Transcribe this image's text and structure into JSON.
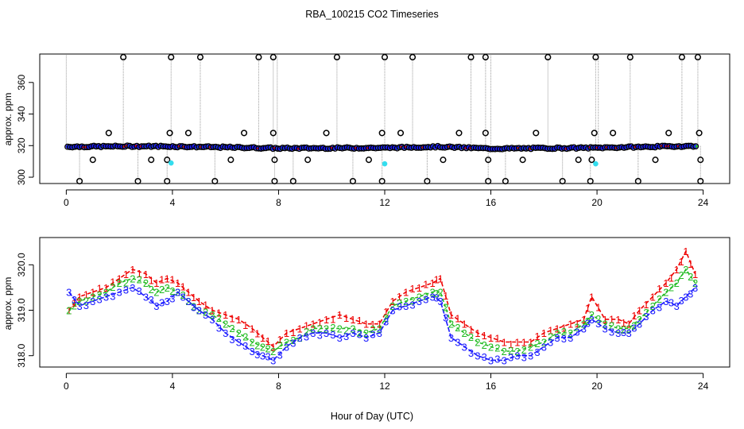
{
  "title": "RBA_100215  CO2 Timeseries",
  "xlabel": "Hour of Day (UTC)",
  "colors": {
    "black": "#000000",
    "blue": "#1a1aff",
    "green": "#22bb22",
    "red": "#ee0000",
    "cyan": "#33ddee",
    "gray": "#9a9a9a"
  },
  "chart_data": [
    {
      "type": "scatter",
      "ylabel": "approx. ppm",
      "xlim": [
        -1,
        25
      ],
      "ylim": [
        296,
        378
      ],
      "xticks": [
        0,
        4,
        8,
        12,
        16,
        20,
        24
      ],
      "yticks": [
        300,
        320,
        340,
        360
      ],
      "high_outliers_y": 376,
      "low_outliers_y": 297.5,
      "high_outliers_x": [
        2.15,
        3.95,
        5.05,
        7.25,
        7.8,
        10.2,
        12.0,
        13.05,
        15.25,
        15.8,
        18.15,
        19.95,
        21.25,
        23.2,
        23.8
      ],
      "low_outliers_x": [
        0.5,
        2.7,
        3.8,
        5.6,
        7.85,
        8.55,
        10.8,
        11.9,
        13.6,
        15.9,
        16.55,
        18.7,
        19.75,
        21.55,
        23.9
      ],
      "mid_outliers": [
        {
          "x": 1.0,
          "y": 311
        },
        {
          "x": 1.6,
          "y": 328
        },
        {
          "x": 3.2,
          "y": 311
        },
        {
          "x": 3.8,
          "y": 311
        },
        {
          "x": 3.9,
          "y": 328
        },
        {
          "x": 4.6,
          "y": 328
        },
        {
          "x": 6.2,
          "y": 311
        },
        {
          "x": 6.7,
          "y": 328
        },
        {
          "x": 7.8,
          "y": 328
        },
        {
          "x": 7.85,
          "y": 311
        },
        {
          "x": 9.1,
          "y": 311
        },
        {
          "x": 9.8,
          "y": 328
        },
        {
          "x": 11.4,
          "y": 311
        },
        {
          "x": 11.9,
          "y": 328
        },
        {
          "x": 12.6,
          "y": 328
        },
        {
          "x": 14.2,
          "y": 311
        },
        {
          "x": 14.8,
          "y": 328
        },
        {
          "x": 15.8,
          "y": 328
        },
        {
          "x": 15.9,
          "y": 311
        },
        {
          "x": 17.2,
          "y": 311
        },
        {
          "x": 17.7,
          "y": 328
        },
        {
          "x": 19.3,
          "y": 311
        },
        {
          "x": 19.9,
          "y": 328
        },
        {
          "x": 19.8,
          "y": 311
        },
        {
          "x": 20.6,
          "y": 328
        },
        {
          "x": 22.2,
          "y": 311
        },
        {
          "x": 22.7,
          "y": 328
        },
        {
          "x": 23.85,
          "y": 328
        },
        {
          "x": 23.9,
          "y": 311
        }
      ],
      "cyan_points": [
        {
          "x": 3.95,
          "y": 309
        },
        {
          "x": 12.0,
          "y": 308.5
        },
        {
          "x": 19.95,
          "y": 308.5
        }
      ],
      "baseline": [
        {
          "x": 0,
          "y": 319.3
        },
        {
          "x": 2.5,
          "y": 319.6
        },
        {
          "x": 4,
          "y": 319.5
        },
        {
          "x": 7.5,
          "y": 318.5
        },
        {
          "x": 8,
          "y": 318.3
        },
        {
          "x": 12,
          "y": 318.6
        },
        {
          "x": 14,
          "y": 319.3
        },
        {
          "x": 16,
          "y": 318.1
        },
        {
          "x": 20,
          "y": 318.6
        },
        {
          "x": 22,
          "y": 319.3
        },
        {
          "x": 23.8,
          "y": 319.8
        }
      ]
    },
    {
      "type": "line",
      "ylabel": "approx. ppm",
      "xlim": [
        -1,
        25
      ],
      "ylim": [
        317.75,
        320.6
      ],
      "xticks": [
        0,
        4,
        8,
        12,
        16,
        20,
        24
      ],
      "yticks": [
        318.0,
        319.0,
        320.0
      ],
      "ytick_labels": [
        "318.0",
        "319.0",
        "320.0"
      ],
      "series": [
        {
          "name": "1",
          "x": [
            0.1,
            0.5,
            1.0,
            1.5,
            2.0,
            2.5,
            3.0,
            3.4,
            3.8,
            4.2,
            4.6,
            5.0,
            5.5,
            6.0,
            6.5,
            7.0,
            7.4,
            7.8,
            8.3,
            8.8,
            9.3,
            9.8,
            10.3,
            10.8,
            11.3,
            11.8,
            12.3,
            12.8,
            13.3,
            13.8,
            14.1,
            14.5,
            15.0,
            15.5,
            16.0,
            16.5,
            17.0,
            17.5,
            18.0,
            18.5,
            19.0,
            19.5,
            19.8,
            20.3,
            20.8,
            21.2,
            21.6,
            22.1,
            22.6,
            23.0,
            23.35,
            23.7
          ],
          "values": [
            319.0,
            319.3,
            319.4,
            319.5,
            319.7,
            319.9,
            319.8,
            319.6,
            319.7,
            319.6,
            319.4,
            319.2,
            319.0,
            318.9,
            318.8,
            318.6,
            318.4,
            318.2,
            318.5,
            318.6,
            318.7,
            318.8,
            318.9,
            318.8,
            318.7,
            318.7,
            319.2,
            319.4,
            319.5,
            319.6,
            319.7,
            318.9,
            318.7,
            318.5,
            318.4,
            318.3,
            318.3,
            318.3,
            318.5,
            318.6,
            318.7,
            318.8,
            319.3,
            318.8,
            318.8,
            318.7,
            319.0,
            319.3,
            319.6,
            319.9,
            320.3,
            319.8
          ]
        },
        {
          "name": "2",
          "x": [
            0.1,
            0.5,
            1.0,
            1.5,
            2.0,
            2.5,
            3.0,
            3.4,
            3.8,
            4.2,
            4.6,
            5.0,
            5.5,
            6.0,
            6.5,
            7.0,
            7.4,
            7.8,
            8.3,
            8.8,
            9.3,
            9.8,
            10.3,
            10.8,
            11.3,
            11.8,
            12.3,
            12.8,
            13.3,
            13.8,
            14.1,
            14.5,
            15.0,
            15.5,
            16.0,
            16.5,
            17.0,
            17.5,
            18.0,
            18.5,
            19.0,
            19.5,
            19.8,
            20.3,
            20.8,
            21.2,
            21.6,
            22.1,
            22.6,
            23.0,
            23.35,
            23.7
          ],
          "values": [
            319.0,
            319.2,
            319.3,
            319.4,
            319.6,
            319.7,
            319.6,
            319.4,
            319.5,
            319.4,
            319.2,
            319.0,
            318.9,
            318.7,
            318.5,
            318.3,
            318.2,
            318.1,
            318.3,
            318.4,
            318.6,
            318.6,
            318.6,
            318.6,
            318.5,
            318.6,
            319.1,
            319.2,
            319.3,
            319.4,
            319.4,
            318.7,
            318.5,
            318.3,
            318.2,
            318.1,
            318.1,
            318.2,
            318.3,
            318.5,
            318.5,
            318.7,
            318.9,
            318.7,
            318.6,
            318.6,
            318.8,
            319.1,
            319.4,
            319.6,
            319.9,
            319.6
          ]
        },
        {
          "name": "3",
          "x": [
            0.1,
            0.5,
            1.0,
            1.5,
            2.0,
            2.5,
            3.0,
            3.4,
            3.8,
            4.2,
            4.6,
            5.0,
            5.5,
            6.0,
            6.5,
            7.0,
            7.4,
            7.8,
            8.3,
            8.8,
            9.3,
            9.8,
            10.3,
            10.8,
            11.3,
            11.8,
            12.3,
            12.8,
            13.3,
            13.8,
            14.1,
            14.5,
            15.0,
            15.5,
            16.0,
            16.5,
            17.0,
            17.5,
            18.0,
            18.5,
            19.0,
            19.5,
            19.8,
            20.3,
            20.8,
            21.2,
            21.6,
            22.1,
            22.6,
            23.0,
            23.35,
            23.7
          ],
          "values": [
            319.4,
            319.1,
            319.2,
            319.3,
            319.4,
            319.5,
            319.3,
            319.1,
            319.2,
            319.4,
            319.2,
            319.0,
            318.8,
            318.5,
            318.3,
            318.1,
            318.0,
            317.9,
            318.2,
            318.4,
            318.5,
            318.5,
            318.4,
            318.5,
            318.4,
            318.5,
            319.0,
            319.1,
            319.2,
            319.3,
            319.2,
            318.4,
            318.2,
            318.0,
            317.9,
            317.9,
            318.0,
            318.0,
            318.2,
            318.4,
            318.4,
            318.6,
            318.8,
            318.6,
            318.5,
            318.5,
            318.7,
            319.0,
            319.2,
            319.1,
            319.3,
            319.5
          ]
        }
      ]
    }
  ]
}
